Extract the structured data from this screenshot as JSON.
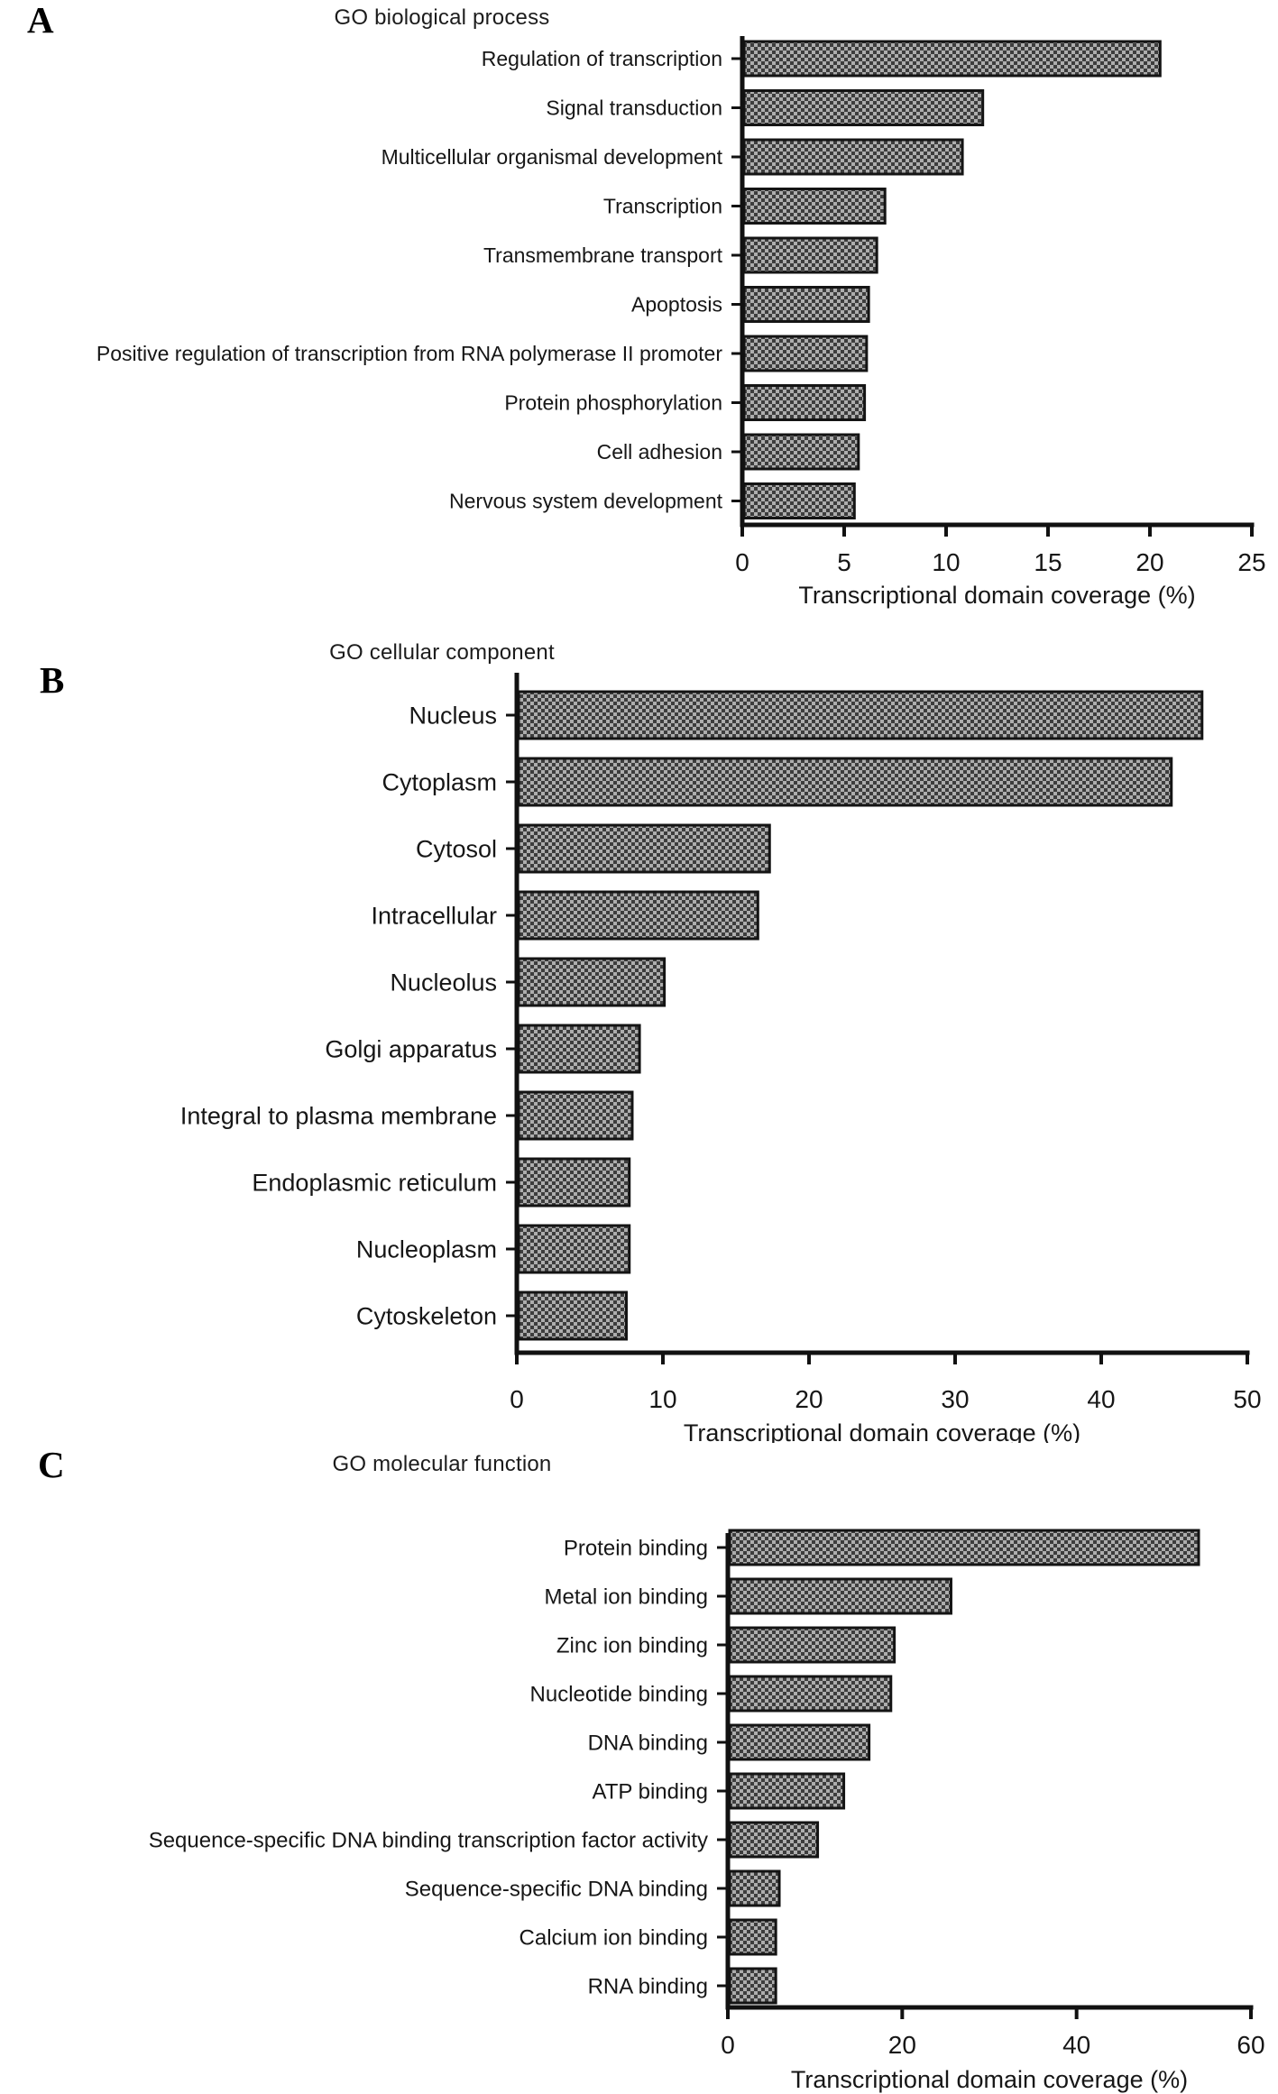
{
  "figure": {
    "background": "#ffffff",
    "text_color": "#161616",
    "axis_color": "#111111",
    "bar_pattern": {
      "dark": "#3d3d3d",
      "light": "#adadad",
      "border": "#141414"
    }
  },
  "chart_data": [
    {
      "type": "bar",
      "orientation": "horizontal",
      "panel_letter": "A",
      "title": "GO biological process",
      "categories": [
        "Regulation of transcription",
        "Signal transduction",
        "Multicellular organismal development",
        "Transcription",
        "Transmembrane transport",
        "Apoptosis",
        "Positive regulation of transcription from RNA polymerase II promoter",
        "Protein phosphorylation",
        "Cell adhesion",
        "Nervous system development"
      ],
      "values": [
        20.5,
        11.8,
        10.8,
        7.0,
        6.6,
        6.2,
        6.1,
        6.0,
        5.7,
        5.5
      ],
      "xlabel": "Transcriptional domain coverage (%)",
      "xlim": [
        0,
        25
      ],
      "xticks": [
        0,
        5,
        10,
        15,
        20,
        25
      ],
      "grid": false,
      "legend": null
    },
    {
      "type": "bar",
      "orientation": "horizontal",
      "panel_letter": "B",
      "title": "GO cellular component",
      "categories": [
        "Nucleus",
        "Cytoplasm",
        "Cytosol",
        "Intracellular",
        "Nucleolus",
        "Golgi apparatus",
        "Integral to plasma membrane",
        "Endoplasmic reticulum",
        "Nucleoplasm",
        "Cytoskeleton"
      ],
      "values": [
        46.9,
        44.8,
        17.3,
        16.5,
        10.1,
        8.4,
        7.9,
        7.7,
        7.7,
        7.5
      ],
      "xlabel": "Transcriptional domain coverage (%)",
      "xlim": [
        0,
        50
      ],
      "xticks": [
        0,
        10,
        20,
        30,
        40,
        50
      ],
      "grid": false,
      "legend": null
    },
    {
      "type": "bar",
      "orientation": "horizontal",
      "panel_letter": "C",
      "title": "GO molecular function",
      "categories": [
        "Protein binding",
        "Metal ion binding",
        "Zinc ion binding",
        "Nucleotide binding",
        "DNA binding",
        "ATP binding",
        "Sequence-specific DNA binding transcription factor activity",
        "Sequence-specific DNA binding",
        "Calcium ion binding",
        "RNA binding"
      ],
      "values": [
        54.0,
        25.6,
        19.1,
        18.7,
        16.2,
        13.3,
        10.3,
        5.9,
        5.5,
        5.5
      ],
      "xlabel": "Transcriptional domain coverage (%)",
      "xlim": [
        0,
        60
      ],
      "xticks": [
        0,
        20,
        40,
        60
      ],
      "grid": false,
      "legend": null
    }
  ]
}
